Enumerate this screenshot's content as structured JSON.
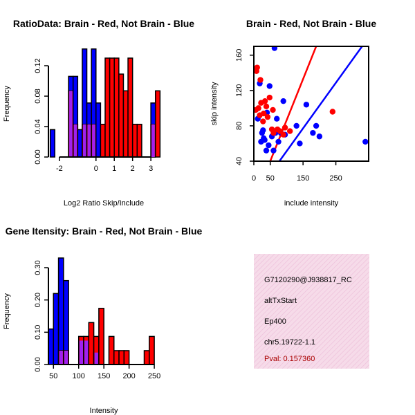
{
  "colors": {
    "brain": "#ff0000",
    "not_brain": "#0000ff",
    "overlap": "#a020f0",
    "info_bg": "#f8d8e8",
    "pval": "#aa0000"
  },
  "chart_data": [
    {
      "type": "histogram",
      "title": "RatioData: Brain - Red, Not Brain - Blue",
      "xlabel": "Log2 Ratio Skip/Include",
      "ylabel": "Frequency",
      "xlim": [
        -2.6,
        3.6
      ],
      "ylim": [
        0,
        0.14
      ],
      "xticks": [
        -2,
        0,
        1,
        2,
        3
      ],
      "yticks": [
        0.0,
        0.04,
        0.08,
        0.12
      ],
      "bin_edges": [
        -2.5,
        -2.25,
        -2.0,
        -1.75,
        -1.5,
        -1.25,
        -1.0,
        -0.75,
        -0.5,
        -0.25,
        0.0,
        0.25,
        0.5,
        0.75,
        1.0,
        1.25,
        1.5,
        1.75,
        2.0,
        2.25,
        2.5,
        2.75,
        3.0,
        3.25,
        3.5
      ],
      "series": [
        {
          "name": "Not Brain",
          "values": [
            0.036,
            0,
            0,
            0,
            0.106,
            0.106,
            0.036,
            0.142,
            0.071,
            0.142,
            0.071,
            0,
            0,
            0,
            0,
            0,
            0,
            0,
            0,
            0,
            0,
            0,
            0.071,
            0,
            0
          ]
        },
        {
          "name": "Brain",
          "values": [
            0,
            0,
            0,
            0,
            0.087,
            0.043,
            0,
            0.043,
            0.043,
            0.043,
            0,
            0.043,
            0.13,
            0.13,
            0.13,
            0.109,
            0.087,
            0.13,
            0.043,
            0.043,
            0,
            0,
            0.043,
            0.087,
            0.043
          ]
        }
      ]
    },
    {
      "type": "scatter",
      "title": "Brain - Red, Not Brain - Blue",
      "xlabel": "include intensity",
      "ylabel": "skip intensity",
      "xlim": [
        0,
        350
      ],
      "ylim": [
        40,
        170
      ],
      "xticks": [
        0,
        50,
        150,
        250
      ],
      "yticks": [
        40,
        80,
        120,
        160
      ],
      "series": [
        {
          "name": "Not Brain",
          "points": [
            [
              12,
              88
            ],
            [
              18,
              128
            ],
            [
              22,
              62
            ],
            [
              25,
              72
            ],
            [
              28,
              75
            ],
            [
              30,
              66
            ],
            [
              33,
              64
            ],
            [
              38,
              52
            ],
            [
              40,
              95
            ],
            [
              45,
              58
            ],
            [
              48,
              125
            ],
            [
              55,
              68
            ],
            [
              60,
              52
            ],
            [
              63,
              168
            ],
            [
              66,
              72
            ],
            [
              70,
              88
            ],
            [
              75,
              62
            ],
            [
              82,
              72
            ],
            [
              90,
              108
            ],
            [
              95,
              70
            ],
            [
              130,
              80
            ],
            [
              140,
              60
            ],
            [
              160,
              104
            ],
            [
              180,
              72
            ],
            [
              190,
              80
            ],
            [
              200,
              68
            ],
            [
              340,
              62
            ]
          ]
        },
        {
          "name": "Brain",
          "points": [
            [
              6,
              98
            ],
            [
              8,
              142
            ],
            [
              10,
              146
            ],
            [
              14,
              100
            ],
            [
              18,
              92
            ],
            [
              20,
              132
            ],
            [
              22,
              106
            ],
            [
              28,
              85
            ],
            [
              30,
              94
            ],
            [
              34,
              108
            ],
            [
              38,
              102
            ],
            [
              42,
              90
            ],
            [
              48,
              112
            ],
            [
              55,
              76
            ],
            [
              58,
              98
            ],
            [
              60,
              72
            ],
            [
              72,
              76
            ],
            [
              80,
              74
            ],
            [
              90,
              70
            ],
            [
              95,
              78
            ],
            [
              110,
              74
            ],
            [
              240,
              96
            ]
          ]
        }
      ],
      "lines": [
        {
          "name": "Brain fit",
          "points": [
            [
              50,
              40
            ],
            [
              190,
              170
            ]
          ]
        },
        {
          "name": "Not Brain fit",
          "points": [
            [
              78,
              40
            ],
            [
              330,
              170
            ]
          ]
        }
      ]
    },
    {
      "type": "histogram",
      "title": "Gene Itensity: Brain - Red, Not Brain - Blue",
      "xlabel": "Intensity",
      "ylabel": "Frequency",
      "xlim": [
        40,
        265
      ],
      "ylim": [
        0,
        0.33
      ],
      "xticks": [
        50,
        100,
        150,
        200,
        250
      ],
      "yticks": [
        0.0,
        0.1,
        0.2,
        0.3
      ],
      "bin_edges": [
        40,
        50,
        60,
        70,
        80,
        90,
        100,
        110,
        120,
        130,
        140,
        150,
        160,
        170,
        180,
        190,
        200,
        210,
        220,
        230,
        240,
        250,
        260
      ],
      "series": [
        {
          "name": "Not Brain",
          "values": [
            0.11,
            0.22,
            0.33,
            0.26,
            0,
            0,
            0.074,
            0.074,
            0,
            0.037,
            0,
            0,
            0,
            0,
            0,
            0,
            0,
            0,
            0,
            0,
            0,
            0
          ]
        },
        {
          "name": "Brain",
          "values": [
            0,
            0,
            0.043,
            0.043,
            0,
            0,
            0.087,
            0.087,
            0.13,
            0.087,
            0.174,
            0,
            0.087,
            0.043,
            0.043,
            0.043,
            0,
            0,
            0,
            0.043,
            0.087,
            0
          ]
        }
      ]
    }
  ],
  "info_box": {
    "probe": "G7120290@J938817_RC",
    "event_type": "altTxStart",
    "gene": "Ep400",
    "locus": "chr5.19722-1.1",
    "pval": "Pval: 0.157360"
  }
}
